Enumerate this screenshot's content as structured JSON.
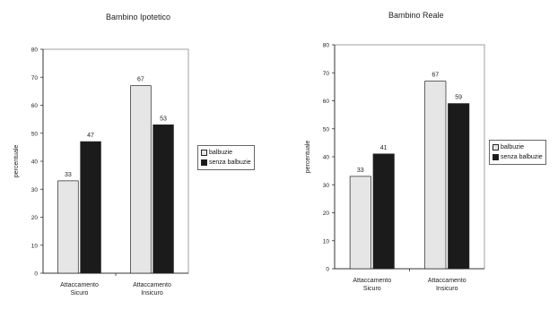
{
  "colors": {
    "balbuzie": "#e6e6e6",
    "senza_balbuzie": "#1b1b1b"
  },
  "chart_data": [
    {
      "type": "bar",
      "title": "Bambino Ipotetico",
      "ylabel": "percentuale",
      "xlabel": "",
      "ylim": [
        0,
        80
      ],
      "yticks": [
        0,
        10,
        20,
        30,
        40,
        50,
        60,
        70,
        80
      ],
      "categories": [
        [
          "Attaccamento",
          "Sicuro"
        ],
        [
          "Attaccamento",
          "Insicuro"
        ]
      ],
      "series": [
        {
          "name": "balbuzie",
          "values": [
            33,
            67
          ]
        },
        {
          "name": "senza balbuzie",
          "values": [
            47,
            53
          ]
        }
      ],
      "grid": false,
      "legend_position": "right"
    },
    {
      "type": "bar",
      "title": "Bambino Reale",
      "ylabel": "percentuale",
      "xlabel": "",
      "ylim": [
        0,
        80
      ],
      "yticks": [
        0,
        10,
        20,
        30,
        40,
        50,
        60,
        70,
        80
      ],
      "categories": [
        [
          "Attaccamento",
          "Sicuro"
        ],
        [
          "Attaccamento",
          "Insicuro"
        ]
      ],
      "series": [
        {
          "name": "balbuzie",
          "values": [
            33,
            67
          ]
        },
        {
          "name": "senza balbuzie",
          "values": [
            41,
            59
          ]
        }
      ],
      "grid": false,
      "legend_position": "right"
    }
  ]
}
